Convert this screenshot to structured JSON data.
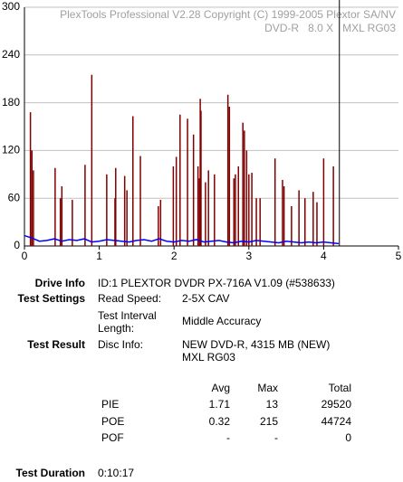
{
  "chart_data": {
    "type": "line",
    "annotations": [
      "PlexTools Professional V2.28 Copyright (C) 1999-2005 Plextor SA/NV",
      "DVD-R   8.0 X   MXL RG03"
    ],
    "xlim": [
      0,
      5
    ],
    "xticks": [
      0,
      1,
      2,
      3,
      4,
      5
    ],
    "ylim": [
      0,
      300
    ],
    "yticks": [
      0,
      60,
      120,
      180,
      240,
      300
    ],
    "grid": true,
    "vline_x": 4.21,
    "vline_color": "#000000",
    "series": [
      {
        "style": "spike",
        "color": "#800000",
        "x": [
          0.08,
          0.1,
          0.12,
          0.41,
          0.48,
          0.5,
          0.64,
          0.81,
          0.9,
          1.1,
          1.21,
          1.22,
          1.34,
          1.37,
          1.45,
          1.55,
          1.79,
          1.82,
          1.99,
          2.03,
          2.08,
          2.18,
          2.26,
          2.32,
          2.34,
          2.35,
          2.36,
          2.42,
          2.46,
          2.54,
          2.72,
          2.74,
          2.8,
          2.82,
          2.86,
          2.92,
          2.94,
          2.97,
          3.0,
          3.04,
          3.1,
          3.15,
          3.35,
          3.45,
          3.47,
          3.57,
          3.67,
          3.75,
          3.86,
          3.91,
          4.0,
          4.13
        ],
        "values": [
          168,
          120,
          95,
          98,
          60,
          75,
          58,
          102,
          215,
          90,
          60,
          98,
          88,
          70,
          163,
          113,
          50,
          58,
          100,
          112,
          165,
          160,
          140,
          100,
          85,
          185,
          170,
          80,
          95,
          90,
          190,
          175,
          85,
          90,
          100,
          155,
          145,
          120,
          90,
          92,
          60,
          60,
          110,
          83,
          75,
          50,
          70,
          60,
          68,
          55,
          110,
          100
        ]
      },
      {
        "style": "line",
        "color": "#0000ff",
        "x": [
          0,
          0.1,
          0.2,
          0.3,
          0.4,
          0.5,
          0.6,
          0.7,
          0.8,
          0.9,
          1.0,
          1.1,
          1.2,
          1.3,
          1.4,
          1.5,
          1.6,
          1.7,
          1.8,
          1.9,
          2.0,
          2.1,
          2.2,
          2.3,
          2.4,
          2.5,
          2.6,
          2.7,
          2.8,
          2.9,
          3.0,
          3.1,
          3.2,
          3.3,
          3.4,
          3.5,
          3.6,
          3.7,
          3.8,
          3.9,
          4.0,
          4.1,
          4.2
        ],
        "values": [
          13,
          10,
          6,
          7,
          9,
          6,
          8,
          7,
          9,
          5,
          6,
          8,
          7,
          6,
          5,
          7,
          8,
          6,
          9,
          6,
          5,
          7,
          6,
          8,
          5,
          6,
          7,
          5,
          4,
          6,
          5,
          7,
          6,
          5,
          4,
          6,
          5,
          4,
          5,
          4,
          5,
          4,
          3
        ]
      }
    ]
  },
  "report": {
    "drive_info": {
      "label": "Drive Info",
      "value": "ID:1 PLEXTOR DVDR PX-716A V1.09 (#538633)"
    },
    "test_settings": {
      "label": "Test Settings",
      "items": [
        [
          "Read Speed:",
          "2-5X CAV"
        ],
        [
          "Test Interval Length:",
          "Middle Accuracy"
        ]
      ]
    },
    "test_result": {
      "label": "Test Result",
      "key": "Disc Info:",
      "lines": [
        "NEW DVD-R, 4315 MB (NEW)",
        "MXL RG03"
      ]
    },
    "table": {
      "header": [
        "Avg",
        "Max",
        "Total"
      ],
      "rows": [
        [
          "PIE",
          "1.71",
          "13",
          "29520"
        ],
        [
          "POE",
          "0.32",
          "215",
          "44724"
        ],
        [
          "POF",
          "-",
          "-",
          "0"
        ]
      ]
    },
    "test_duration": {
      "label": "Test Duration",
      "value": "0:10:17"
    }
  }
}
